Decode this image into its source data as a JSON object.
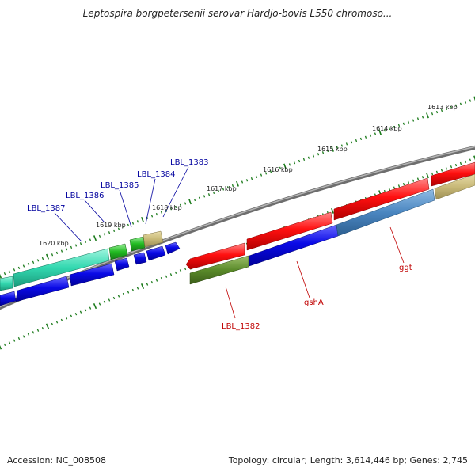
{
  "title": "Leptospira borgpetersenii serovar Hardjo-bovis L550 chromoso...",
  "footer": {
    "accession": "Accession: NC_008508",
    "summary": "Topology: circular; Length: 3,614,446 bp; Genes: 2,745"
  },
  "scale_labels": [
    "1613 kbp",
    "1614 kbp",
    "1615 kbp",
    "1616 kbp",
    "1617 kbp",
    "1618 kbp",
    "1619 kbp",
    "1620 kbp"
  ],
  "gene_labels": {
    "blue": [
      "LBL_1387",
      "LBL_1386",
      "LBL_1385",
      "LBL_1384",
      "LBL_1383"
    ],
    "red": [
      "LBL_1382",
      "gshA",
      "ggt"
    ]
  },
  "colors": {
    "backbone": "#7d7d7d",
    "tick": "#1a7a1a",
    "forward_cds": "#ff0000",
    "reverse_cds": "#0000e6",
    "cyan_feature": "#33e0b8",
    "green_feature": "#22bb22",
    "olive_feature": "#5a8a2a",
    "khaki_feature": "#c8b978",
    "steelblue_feature": "#4a86c0",
    "label_blue": "#00009e",
    "label_red": "#c00000"
  }
}
